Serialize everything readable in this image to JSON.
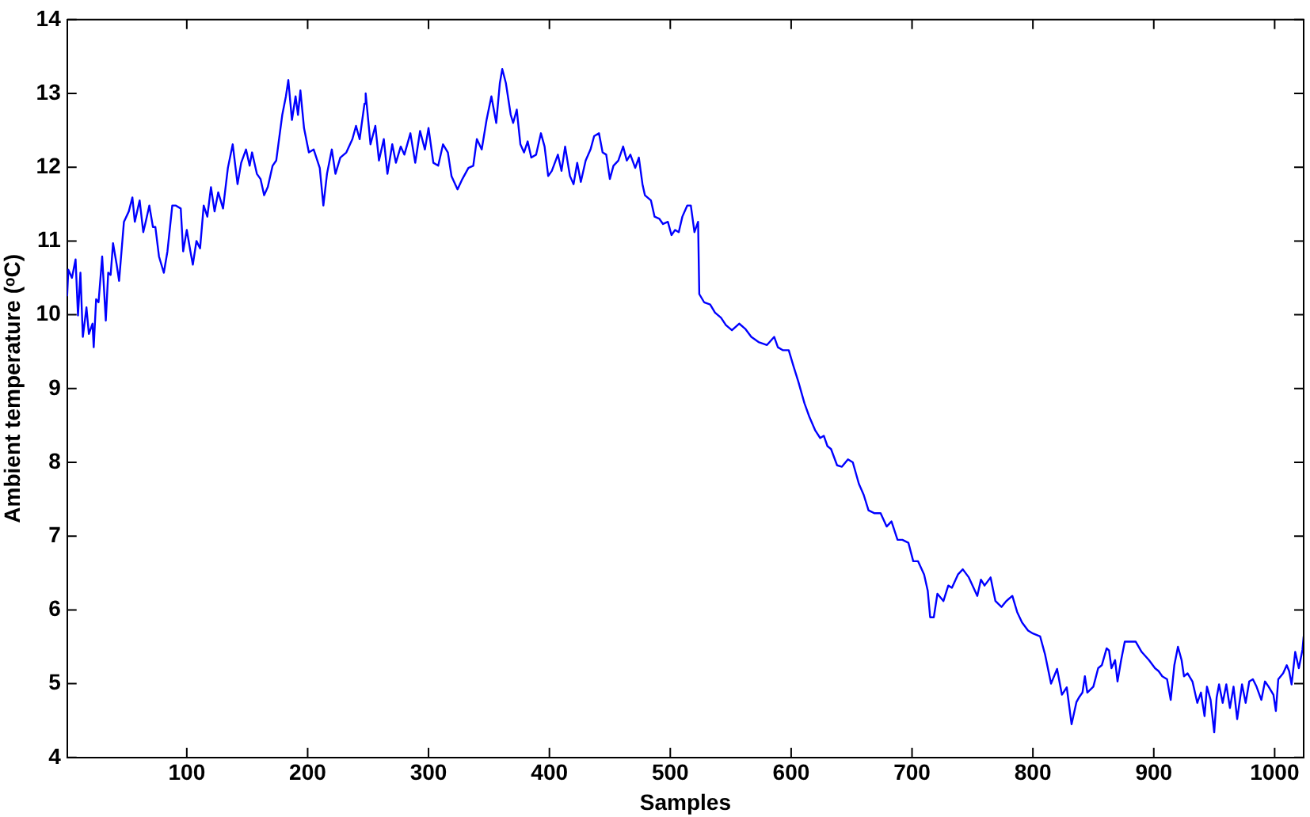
{
  "chart_data": {
    "type": "line",
    "xlabel": "Samples",
    "ylabel": "Ambient temperature (ᵒC)",
    "xlim": [
      1,
      1024
    ],
    "ylim": [
      4,
      14
    ],
    "xticks": [
      100,
      200,
      300,
      400,
      500,
      600,
      700,
      800,
      900,
      1000
    ],
    "yticks": [
      4,
      5,
      6,
      7,
      8,
      9,
      10,
      11,
      12,
      13,
      14
    ],
    "grid": false,
    "legend": false,
    "marker": "none",
    "line_style": "solid",
    "series": [
      {
        "color": "#0000ff",
        "x": [
          1,
          2,
          5,
          8,
          10,
          12,
          14,
          17,
          19,
          22,
          23,
          25,
          27,
          30,
          33,
          35,
          37,
          39,
          42,
          44,
          48,
          52,
          55,
          57,
          61,
          64,
          66,
          69,
          72,
          74,
          77,
          81,
          84,
          88,
          91,
          95,
          97,
          100,
          103,
          105,
          108,
          111,
          114,
          117,
          120,
          123,
          126,
          130,
          134,
          138,
          142,
          145,
          149,
          152,
          154,
          158,
          161,
          164,
          167,
          171,
          174,
          179,
          182,
          184,
          187,
          190,
          192,
          194,
          197,
          201,
          205,
          210,
          213,
          216,
          220,
          223,
          227,
          232,
          237,
          240,
          243,
          247,
          248,
          252,
          256,
          259,
          263,
          266,
          270,
          273,
          277,
          280,
          285,
          289,
          293,
          297,
          300,
          304,
          308,
          312,
          316,
          319,
          324,
          328,
          333,
          337,
          340,
          344,
          348,
          352,
          356,
          359,
          361,
          364,
          368,
          370,
          373,
          376,
          379,
          382,
          385,
          389,
          393,
          396,
          399,
          402,
          407,
          410,
          413,
          417,
          420,
          423,
          426,
          430,
          434,
          437,
          441,
          444,
          447,
          450,
          453,
          457,
          461,
          464,
          467,
          471,
          474,
          477,
          479,
          484,
          487,
          491,
          494,
          498,
          501,
          504,
          507,
          510,
          514,
          517,
          520,
          523,
          524,
          528,
          533,
          537,
          542,
          546,
          551,
          557,
          562,
          567,
          573,
          580,
          586,
          589,
          593,
          598,
          602,
          606,
          611,
          615,
          620,
          624,
          627,
          630,
          633,
          638,
          642,
          647,
          651,
          656,
          660,
          664,
          669,
          674,
          679,
          683,
          688,
          692,
          697,
          701,
          705,
          710,
          713,
          715,
          718,
          721,
          726,
          730,
          733,
          738,
          742,
          747,
          754,
          757,
          760,
          765,
          769,
          774,
          778,
          783,
          787,
          791,
          796,
          800,
          806,
          810,
          815,
          820,
          824,
          828,
          832,
          836,
          838,
          841,
          843,
          845,
          850,
          854,
          857,
          861,
          863,
          865,
          868,
          870,
          873,
          876,
          881,
          885,
          890,
          896,
          901,
          904,
          907,
          911,
          914,
          917,
          920,
          923,
          925,
          928,
          932,
          936,
          939,
          942,
          944,
          947,
          950,
          952,
          954,
          957,
          960,
          963,
          966,
          969,
          973,
          976,
          979,
          982,
          985,
          989,
          992,
          995,
          999,
          1001,
          1003,
          1007,
          1010,
          1012,
          1014,
          1017,
          1020,
          1023,
          1024
        ],
        "values": [
          10.25,
          10.61,
          10.5,
          10.75,
          9.99,
          10.57,
          9.7,
          10.1,
          9.74,
          9.88,
          9.56,
          10.21,
          10.17,
          10.79,
          9.92,
          10.57,
          10.54,
          10.97,
          10.68,
          10.46,
          11.26,
          11.4,
          11.59,
          11.26,
          11.55,
          11.12,
          11.26,
          11.48,
          11.19,
          11.19,
          10.79,
          10.57,
          10.86,
          11.48,
          11.48,
          11.44,
          10.86,
          11.15,
          10.86,
          10.68,
          11.0,
          10.9,
          11.48,
          11.33,
          11.73,
          11.4,
          11.66,
          11.44,
          11.99,
          12.31,
          11.77,
          12.06,
          12.24,
          12.02,
          12.2,
          11.91,
          11.84,
          11.62,
          11.73,
          12.02,
          12.09,
          12.71,
          12.96,
          13.18,
          12.64,
          12.96,
          12.71,
          13.04,
          12.53,
          12.2,
          12.24,
          11.99,
          11.48,
          11.91,
          12.24,
          11.91,
          12.13,
          12.2,
          12.38,
          12.56,
          12.38,
          12.86,
          13.0,
          12.31,
          12.56,
          12.09,
          12.38,
          11.91,
          12.31,
          12.06,
          12.28,
          12.17,
          12.46,
          12.06,
          12.49,
          12.24,
          12.53,
          12.06,
          12.02,
          12.31,
          12.2,
          11.88,
          11.7,
          11.84,
          11.99,
          12.02,
          12.38,
          12.24,
          12.64,
          12.96,
          12.6,
          13.14,
          13.33,
          13.14,
          12.71,
          12.6,
          12.78,
          12.31,
          12.2,
          12.35,
          12.13,
          12.17,
          12.46,
          12.28,
          11.88,
          11.95,
          12.17,
          11.95,
          12.28,
          11.88,
          11.77,
          12.06,
          11.8,
          12.09,
          12.24,
          12.42,
          12.46,
          12.2,
          12.17,
          11.84,
          12.02,
          12.09,
          12.28,
          12.09,
          12.17,
          11.99,
          12.13,
          11.77,
          11.62,
          11.55,
          11.33,
          11.3,
          11.23,
          11.26,
          11.08,
          11.15,
          11.12,
          11.33,
          11.48,
          11.48,
          11.12,
          11.26,
          10.28,
          10.17,
          10.14,
          10.03,
          9.96,
          9.86,
          9.79,
          9.88,
          9.81,
          9.7,
          9.63,
          9.59,
          9.7,
          9.56,
          9.52,
          9.52,
          9.3,
          9.09,
          8.8,
          8.62,
          8.43,
          8.33,
          8.36,
          8.22,
          8.18,
          7.96,
          7.94,
          8.04,
          8.0,
          7.71,
          7.56,
          7.35,
          7.31,
          7.31,
          7.13,
          7.2,
          6.95,
          6.95,
          6.91,
          6.66,
          6.66,
          6.48,
          6.26,
          5.9,
          5.9,
          6.22,
          6.12,
          6.33,
          6.3,
          6.48,
          6.55,
          6.44,
          6.19,
          6.41,
          6.33,
          6.44,
          6.12,
          6.04,
          6.12,
          6.19,
          5.97,
          5.83,
          5.72,
          5.68,
          5.64,
          5.4,
          5.0,
          5.2,
          4.85,
          4.95,
          4.45,
          4.75,
          4.81,
          4.88,
          5.1,
          4.88,
          4.96,
          5.21,
          5.25,
          5.48,
          5.45,
          5.21,
          5.32,
          5.03,
          5.32,
          5.57,
          5.57,
          5.57,
          5.43,
          5.32,
          5.21,
          5.17,
          5.1,
          5.06,
          4.78,
          5.25,
          5.5,
          5.32,
          5.1,
          5.14,
          5.03,
          4.74,
          4.88,
          4.56,
          4.96,
          4.78,
          4.34,
          4.81,
          4.99,
          4.74,
          4.99,
          4.67,
          4.96,
          4.52,
          4.99,
          4.74,
          5.03,
          5.06,
          4.96,
          4.78,
          5.03,
          4.96,
          4.85,
          4.63,
          5.06,
          5.14,
          5.25,
          5.17,
          4.99,
          5.43,
          5.21,
          5.46,
          5.64
        ]
      }
    ]
  }
}
